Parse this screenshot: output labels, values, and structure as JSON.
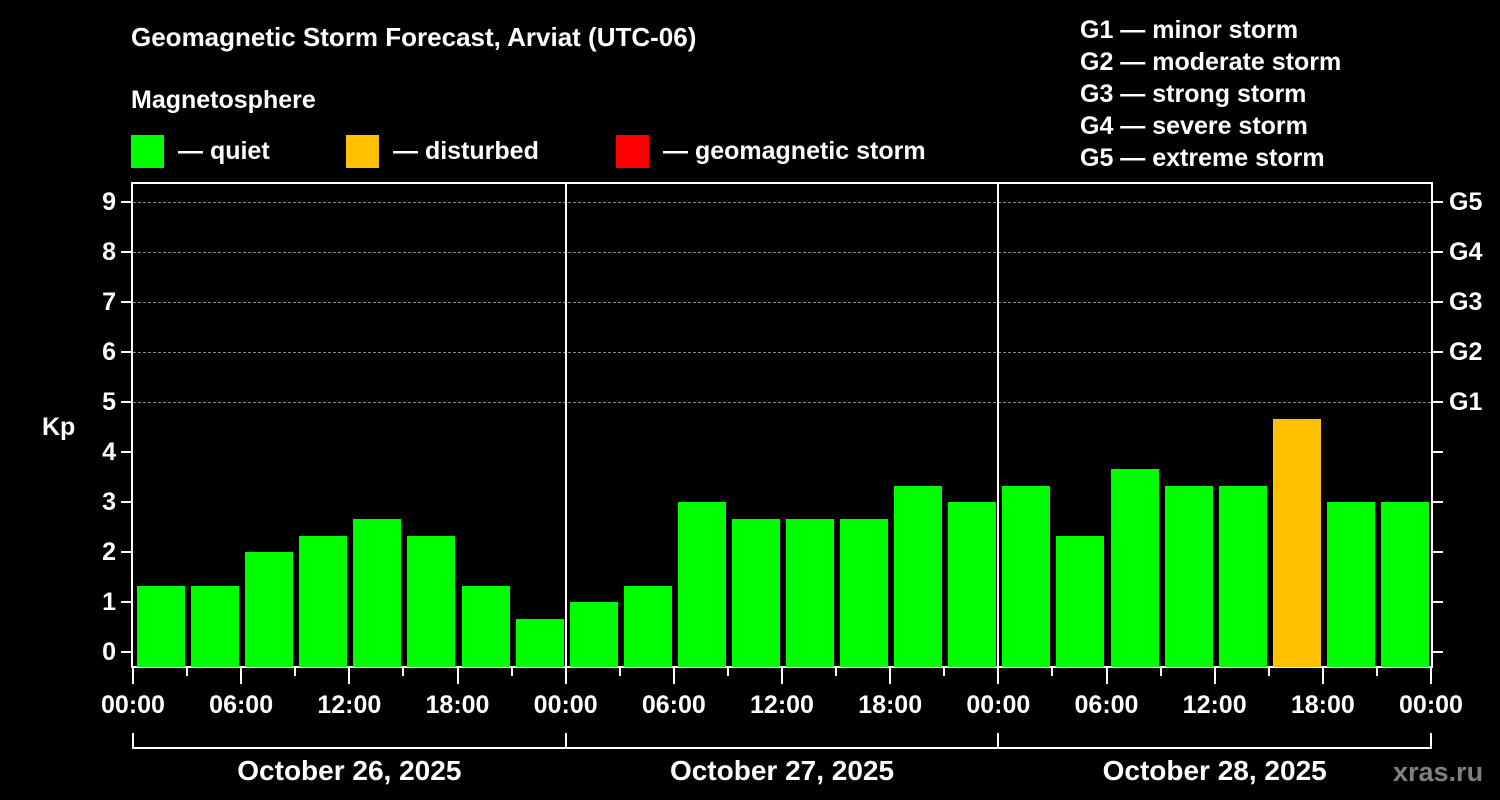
{
  "title": "Geomagnetic Storm Forecast, Arviat (UTC-06)",
  "subtitle": "Magnetosphere",
  "legend": [
    {
      "label": "— quiet",
      "color": "#00ff00"
    },
    {
      "label": "— disturbed",
      "color": "#ffc000"
    },
    {
      "label": "— geomagnetic storm",
      "color": "#ff0000"
    }
  ],
  "g_scale": [
    "G1 — minor storm",
    "G2 — moderate storm",
    "G3 — strong storm",
    "G4 — severe storm",
    "G5 — extreme storm"
  ],
  "watermark": "xras.ru",
  "chart_data": {
    "type": "bar",
    "title": "Geomagnetic Storm Forecast, Arviat (UTC-06)",
    "ylabel": "Kp",
    "xlabel": "",
    "ylim": [
      0,
      9
    ],
    "yticks": [
      "0",
      "1",
      "2",
      "3",
      "4",
      "5",
      "6",
      "7",
      "8",
      "9"
    ],
    "right_axis_labels": [
      {
        "kp": 5,
        "label": "G1"
      },
      {
        "kp": 6,
        "label": "G2"
      },
      {
        "kp": 7,
        "label": "G3"
      },
      {
        "kp": 8,
        "label": "G4"
      },
      {
        "kp": 9,
        "label": "G5"
      }
    ],
    "grid": "dashed horizontal at Kp 5-9",
    "x_tick_labels": [
      "00:00",
      "06:00",
      "12:00",
      "18:00",
      "00:00",
      "06:00",
      "12:00",
      "18:00",
      "00:00",
      "06:00",
      "12:00",
      "18:00",
      "00:00"
    ],
    "days": [
      "October 26, 2025",
      "October 27, 2025",
      "October 28, 2025"
    ],
    "categories": [
      "Oct 26 00-03",
      "Oct 26 03-06",
      "Oct 26 06-09",
      "Oct 26 09-12",
      "Oct 26 12-15",
      "Oct 26 15-18",
      "Oct 26 18-21",
      "Oct 26 21-24",
      "Oct 27 00-03",
      "Oct 27 03-06",
      "Oct 27 06-09",
      "Oct 27 09-12",
      "Oct 27 12-15",
      "Oct 27 15-18",
      "Oct 27 18-21",
      "Oct 27 21-24",
      "Oct 28 00-03",
      "Oct 28 03-06",
      "Oct 28 06-09",
      "Oct 28 09-12",
      "Oct 28 12-15",
      "Oct 28 15-18",
      "Oct 28 18-21",
      "Oct 28 21-24"
    ],
    "values": [
      1.33,
      1.33,
      2.0,
      2.33,
      2.67,
      2.33,
      1.33,
      0.67,
      1.0,
      1.33,
      3.0,
      2.67,
      2.67,
      2.67,
      3.33,
      3.0,
      3.33,
      2.33,
      3.67,
      3.33,
      3.33,
      4.67,
      3.0,
      3.0
    ],
    "status": [
      "quiet",
      "quiet",
      "quiet",
      "quiet",
      "quiet",
      "quiet",
      "quiet",
      "quiet",
      "quiet",
      "quiet",
      "quiet",
      "quiet",
      "quiet",
      "quiet",
      "quiet",
      "quiet",
      "quiet",
      "quiet",
      "quiet",
      "quiet",
      "quiet",
      "disturbed",
      "quiet",
      "quiet"
    ],
    "colors": {
      "quiet": "#00ff00",
      "disturbed": "#ffc000",
      "storm": "#ff0000"
    }
  }
}
